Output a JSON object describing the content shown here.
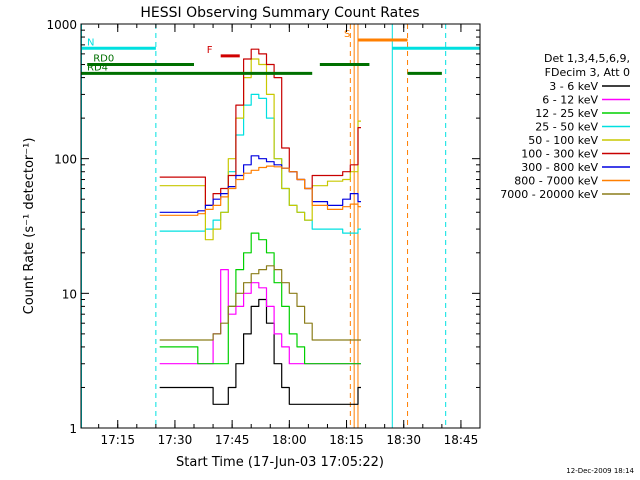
{
  "chart_data": {
    "type": "line",
    "title": "HESSI Observing Summary Count Rates",
    "xlabel": "Start Time (17-Jun-03 17:05:22)",
    "ylabel": "Count Rate (s⁻¹ detector⁻¹)",
    "y_scale": "log",
    "ylim": [
      1,
      1000
    ],
    "xlim": [
      "17:05:22",
      "18:50:00"
    ],
    "x_ticks": [
      "17:15",
      "17:30",
      "17:45",
      "18:00",
      "18:15",
      "18:30",
      "18:45"
    ],
    "y_ticks": [
      "1",
      "10",
      "100",
      "1000"
    ],
    "legend_position": "right",
    "legend_header": [
      "Det 1,3,4,5,6,9,",
      "FDecim 3, Att 0"
    ],
    "series": [
      {
        "name": "3 - 6 keV",
        "color": "#000000",
        "x": [
          "17:26",
          "17:36",
          "17:40",
          "17:44",
          "17:46",
          "17:48",
          "17:50",
          "17:52",
          "17:54",
          "17:56",
          "17:58",
          "18:00",
          "18:04",
          "18:10",
          "18:14",
          "18:18"
        ],
        "values": [
          2,
          2,
          1.5,
          2,
          3,
          5,
          8,
          9,
          6,
          3,
          2,
          1.5,
          1.5,
          1.5,
          1.5,
          2
        ]
      },
      {
        "name": "6 - 12 keV",
        "color": "#ff00ff",
        "x": [
          "17:26",
          "17:36",
          "17:40",
          "17:42",
          "17:44",
          "17:46",
          "17:48",
          "17:50",
          "17:52",
          "17:54",
          "17:56",
          "17:58",
          "18:00",
          "18:04",
          "18:10",
          "18:14",
          "18:18"
        ],
        "values": [
          3,
          3,
          5,
          15,
          7,
          8,
          10,
          12,
          11,
          8,
          5,
          4,
          3,
          3,
          3,
          3,
          3
        ]
      },
      {
        "name": "12 - 25 keV",
        "color": "#00d000",
        "x": [
          "17:26",
          "17:36",
          "17:40",
          "17:44",
          "17:46",
          "17:48",
          "17:50",
          "17:52",
          "17:54",
          "17:56",
          "17:58",
          "18:00",
          "18:02",
          "18:04",
          "18:10",
          "18:14",
          "18:18"
        ],
        "values": [
          4,
          3,
          3,
          8,
          15,
          20,
          28,
          25,
          20,
          12,
          8,
          5,
          4,
          3,
          3,
          3,
          3
        ]
      },
      {
        "name": "25 - 50 keV",
        "color": "#00e0e0",
        "x": [
          "17:26",
          "17:36",
          "17:38",
          "17:40",
          "17:42",
          "17:44",
          "17:46",
          "17:48",
          "17:50",
          "17:52",
          "17:54",
          "17:56",
          "17:58",
          "18:00",
          "18:02",
          "18:04",
          "18:06",
          "18:10",
          "18:14",
          "18:18"
        ],
        "values": [
          29,
          29,
          30,
          35,
          40,
          80,
          150,
          250,
          300,
          280,
          200,
          100,
          60,
          45,
          40,
          35,
          30,
          30,
          28,
          30
        ]
      },
      {
        "name": "50 - 100 keV",
        "color": "#c8c800",
        "x": [
          "17:26",
          "17:36",
          "17:38",
          "17:40",
          "17:42",
          "17:44",
          "17:46",
          "17:48",
          "17:50",
          "17:52",
          "17:54",
          "17:56",
          "17:58",
          "18:00",
          "18:02",
          "18:04",
          "18:06",
          "18:10",
          "18:14",
          "18:16",
          "18:18"
        ],
        "values": [
          63,
          63,
          25,
          30,
          40,
          100,
          200,
          400,
          550,
          500,
          300,
          100,
          60,
          45,
          40,
          35,
          63,
          68,
          70,
          80,
          190
        ]
      },
      {
        "name": "100 - 300 keV",
        "color": "#c80000",
        "x": [
          "17:26",
          "17:36",
          "17:38",
          "17:40",
          "17:42",
          "17:44",
          "17:46",
          "17:48",
          "17:50",
          "17:52",
          "17:54",
          "17:56",
          "17:58",
          "18:00",
          "18:02",
          "18:04",
          "18:06",
          "18:10",
          "18:14",
          "18:16",
          "18:18"
        ],
        "values": [
          73,
          73,
          45,
          55,
          60,
          75,
          250,
          550,
          650,
          600,
          500,
          400,
          120,
          80,
          70,
          60,
          75,
          75,
          80,
          90,
          170
        ]
      },
      {
        "name": "300 - 800 keV",
        "color": "#0000e0",
        "x": [
          "17:26",
          "17:36",
          "17:38",
          "17:40",
          "17:42",
          "17:44",
          "17:46",
          "17:48",
          "17:50",
          "17:52",
          "17:54",
          "17:56",
          "17:58",
          "18:00",
          "18:02",
          "18:04",
          "18:06",
          "18:10",
          "18:14",
          "18:16",
          "18:18"
        ],
        "values": [
          40,
          41,
          45,
          50,
          55,
          62,
          75,
          90,
          105,
          100,
          95,
          90,
          85,
          80,
          70,
          60,
          48,
          45,
          50,
          55,
          48
        ]
      },
      {
        "name": "800 - 7000 keV",
        "color": "#ff7f00",
        "x": [
          "17:26",
          "17:36",
          "17:38",
          "17:40",
          "17:42",
          "17:44",
          "17:46",
          "17:48",
          "17:50",
          "17:52",
          "17:54",
          "17:56",
          "17:58",
          "18:00",
          "18:02",
          "18:04",
          "18:06",
          "18:10",
          "18:14",
          "18:16",
          "18:18"
        ],
        "values": [
          38,
          39,
          42,
          45,
          52,
          60,
          70,
          78,
          82,
          86,
          88,
          87,
          85,
          80,
          70,
          60,
          45,
          42,
          44,
          46,
          44
        ]
      },
      {
        "name": "7000 - 20000 keV",
        "color": "#8b7d1a",
        "x": [
          "17:26",
          "17:36",
          "17:38",
          "17:40",
          "17:42",
          "17:44",
          "17:46",
          "17:48",
          "17:50",
          "17:52",
          "17:54",
          "17:56",
          "17:58",
          "18:00",
          "18:02",
          "18:04",
          "18:06",
          "18:10",
          "18:14",
          "18:16",
          "18:18"
        ],
        "values": [
          4.5,
          4.5,
          4.5,
          5,
          6,
          8,
          10,
          12,
          14,
          15,
          16,
          15,
          12,
          10,
          8,
          6,
          4.5,
          4.5,
          4.5,
          4.5,
          4.5
        ]
      }
    ],
    "status_bars": [
      {
        "label": "N",
        "color": "#00e0e0",
        "y": 660,
        "segments": [
          [
            "17:05",
            "17:25"
          ],
          [
            "18:27",
            "18:50"
          ]
        ]
      },
      {
        "label": "F",
        "color": "#d00000",
        "y": 580,
        "segments": [
          [
            "17:42",
            "17:47"
          ]
        ]
      },
      {
        "label": "RD0",
        "color": "#007000",
        "y": 500,
        "segments": [
          [
            "17:07",
            "17:35"
          ],
          [
            "18:08",
            "18:21"
          ]
        ]
      },
      {
        "label": "RD4",
        "color": "#007000",
        "y": 430,
        "segments": [
          [
            "17:05",
            "17:35"
          ],
          [
            "17:35",
            "18:06"
          ],
          [
            "18:31",
            "18:40"
          ]
        ]
      },
      {
        "label": "S",
        "color": "#ff7f00",
        "y": 760,
        "segments": [
          [
            "18:18",
            "18:31"
          ]
        ]
      }
    ],
    "vertical_lines": [
      {
        "time": "17:05:30",
        "color": "#00e0e0",
        "style": "solid"
      },
      {
        "time": "17:25",
        "color": "#00e0e0",
        "style": "dashed"
      },
      {
        "time": "18:27",
        "color": "#00e0e0",
        "style": "solid"
      },
      {
        "time": "18:41",
        "color": "#00e0e0",
        "style": "dashed"
      },
      {
        "time": "18:16",
        "color": "#ff7f00",
        "style": "dashed"
      },
      {
        "time": "18:17",
        "color": "#ff7f00",
        "style": "solid"
      },
      {
        "time": "18:18",
        "color": "#ff7f00",
        "style": "solid"
      },
      {
        "time": "18:31",
        "color": "#ff7f00",
        "style": "dashed"
      }
    ],
    "footer_date": "12-Dec-2009 18:14"
  }
}
